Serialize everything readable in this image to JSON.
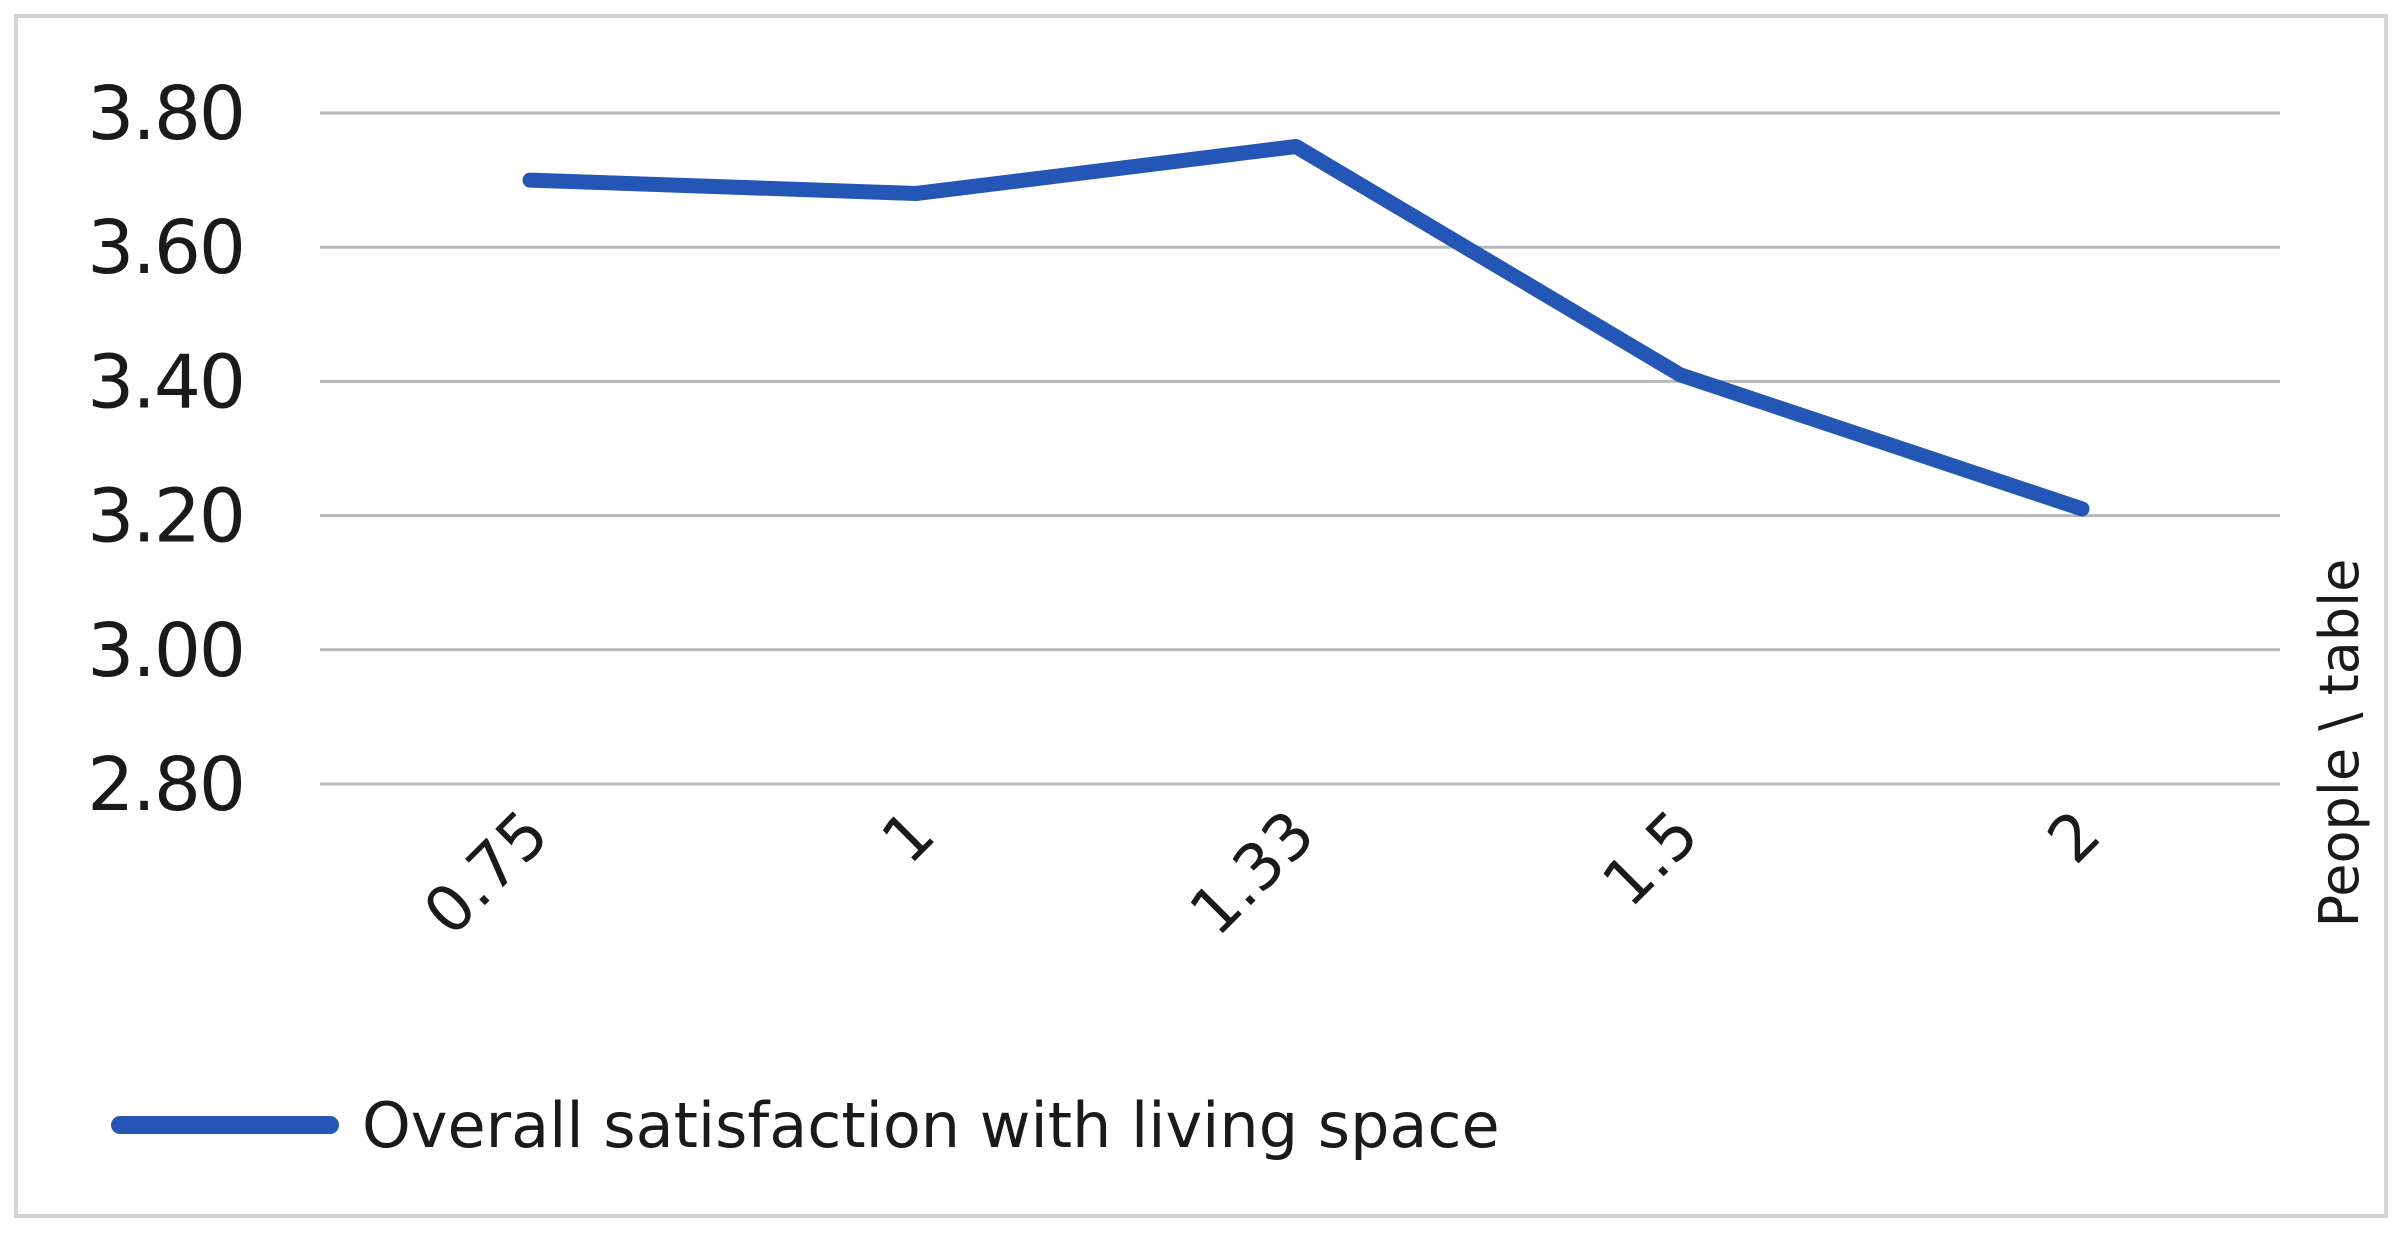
{
  "chart_data": {
    "type": "line",
    "categories": [
      "0.75",
      "1",
      "1.33",
      "1.5",
      "2"
    ],
    "series": [
      {
        "name": "Overall satisfaction with living space",
        "values": [
          3.7,
          3.68,
          3.75,
          3.41,
          3.21
        ],
        "color": "#2456b5"
      }
    ],
    "ylabel": "People \\ table",
    "ylim": [
      2.8,
      3.8
    ],
    "yticks": [
      "3.80",
      "3.60",
      "3.40",
      "3.20",
      "3.00",
      "2.80"
    ],
    "ytick_values": [
      3.8,
      3.6,
      3.4,
      3.2,
      3.0,
      2.8
    ],
    "grid": true,
    "legend_position": "bottom-left",
    "grid_color": "#b8b8b8"
  }
}
